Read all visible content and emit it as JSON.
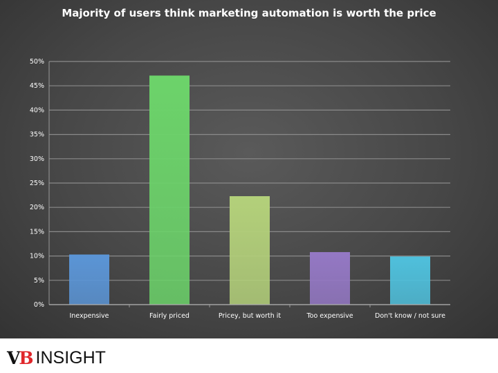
{
  "chart_data": {
    "type": "bar",
    "title": "Majority of users think marketing automation is worth the price",
    "categories": [
      "Inexpensive",
      "Fairly priced",
      "Pricey, but worth it",
      "Too expensive",
      "Don't know / not sure"
    ],
    "values": [
      10.3,
      47.1,
      22.3,
      10.8,
      9.9
    ],
    "colors": [
      "#5b95d6",
      "#6cd36a",
      "#b3d07a",
      "#9478c4",
      "#4fc0dc"
    ],
    "xlabel": "",
    "ylabel": "",
    "ylim": [
      0,
      50
    ],
    "yticks": [
      "0%",
      "5%",
      "10%",
      "15%",
      "20%",
      "25%",
      "30%",
      "35%",
      "40%",
      "45%",
      "50%"
    ],
    "grid": true,
    "legend": "none"
  },
  "logo": {
    "text_vb": "VB",
    "text_insight": "INSIGHT"
  }
}
